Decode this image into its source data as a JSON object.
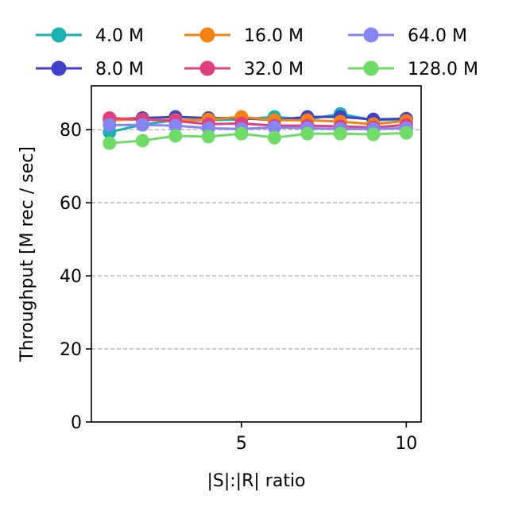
{
  "chart_data": {
    "type": "line",
    "xlabel": "|S|:|R| ratio",
    "ylabel": "Throughput [M rec / sec]",
    "xlim": [
      0.45,
      10.45
    ],
    "ylim": [
      0,
      92
    ],
    "xticks": [
      5,
      10
    ],
    "yticks": [
      0,
      20,
      40,
      60,
      80
    ],
    "grid": "y-dashed",
    "legend_position": "top",
    "x": [
      1,
      2,
      3,
      4,
      5,
      6,
      7,
      8,
      9,
      10
    ],
    "series": [
      {
        "name": "4.0 M",
        "color": "#1ab2b0",
        "values": [
          79.3,
          81.4,
          82.6,
          82.6,
          82.8,
          83.5,
          82.8,
          84.3,
          82.6,
          82.8
        ]
      },
      {
        "name": "8.0 M",
        "color": "#4040c8",
        "values": [
          82.8,
          83.2,
          83.5,
          83.2,
          83.2,
          82.6,
          83.5,
          83.5,
          82.8,
          83.0
        ]
      },
      {
        "name": "16.0 M",
        "color": "#f28313",
        "values": [
          82.6,
          82.8,
          82.6,
          82.8,
          83.5,
          82.6,
          82.6,
          82.2,
          81.5,
          82.4
        ]
      },
      {
        "name": "32.0 M",
        "color": "#e0407d",
        "values": [
          83.2,
          82.8,
          82.4,
          81.5,
          81.7,
          81.1,
          81.1,
          80.9,
          80.6,
          81.3
        ]
      },
      {
        "name": "64.0 M",
        "color": "#8585f3",
        "values": [
          81.3,
          81.3,
          81.1,
          80.4,
          80.2,
          80.6,
          80.4,
          80.2,
          80.2,
          80.4
        ]
      },
      {
        "name": "128.0 M",
        "color": "#70dc68",
        "values": [
          76.3,
          77.0,
          78.3,
          78.1,
          78.9,
          77.8,
          78.9,
          78.9,
          78.7,
          79.1
        ]
      }
    ]
  }
}
